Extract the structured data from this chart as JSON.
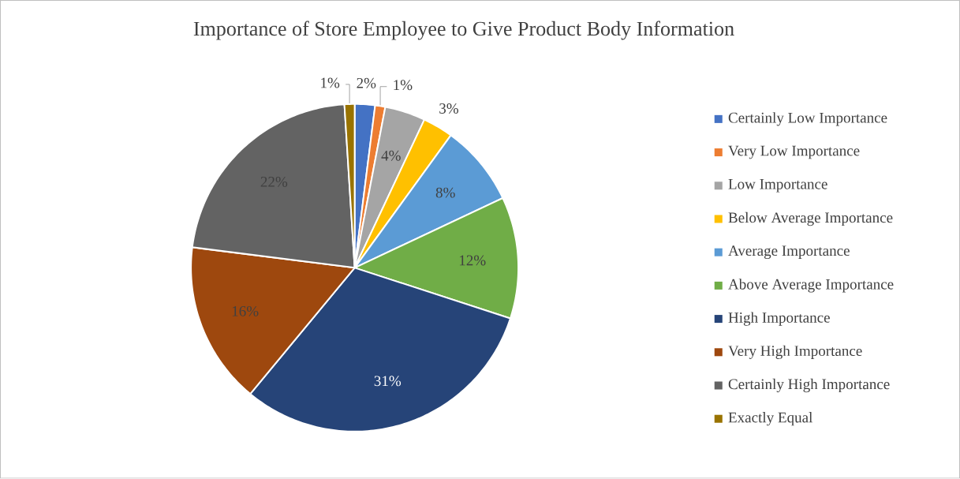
{
  "chart_data": {
    "type": "pie",
    "title": "Importance of Store Employee to Give Product Body Information",
    "categories": [
      "Certainly Low Importance",
      "Very Low Importance",
      "Low Importance",
      "Below Average Importance",
      "Average Importance",
      "Above Average Importance",
      "High Importance",
      "Very High Importance",
      "Certainly High Importance",
      "Exactly Equal"
    ],
    "values": [
      2,
      1,
      4,
      3,
      8,
      12,
      31,
      16,
      22,
      1
    ],
    "colors": [
      "#4472c4",
      "#ed7d31",
      "#a5a5a5",
      "#ffc000",
      "#5b9bd5",
      "#70ad47",
      "#264478",
      "#9e480e",
      "#636363",
      "#997300"
    ],
    "value_labels": [
      "2%",
      "1%",
      "4%",
      "3%",
      "8%",
      "12%",
      "31%",
      "16%",
      "22%",
      "1%"
    ],
    "legend": "right"
  }
}
